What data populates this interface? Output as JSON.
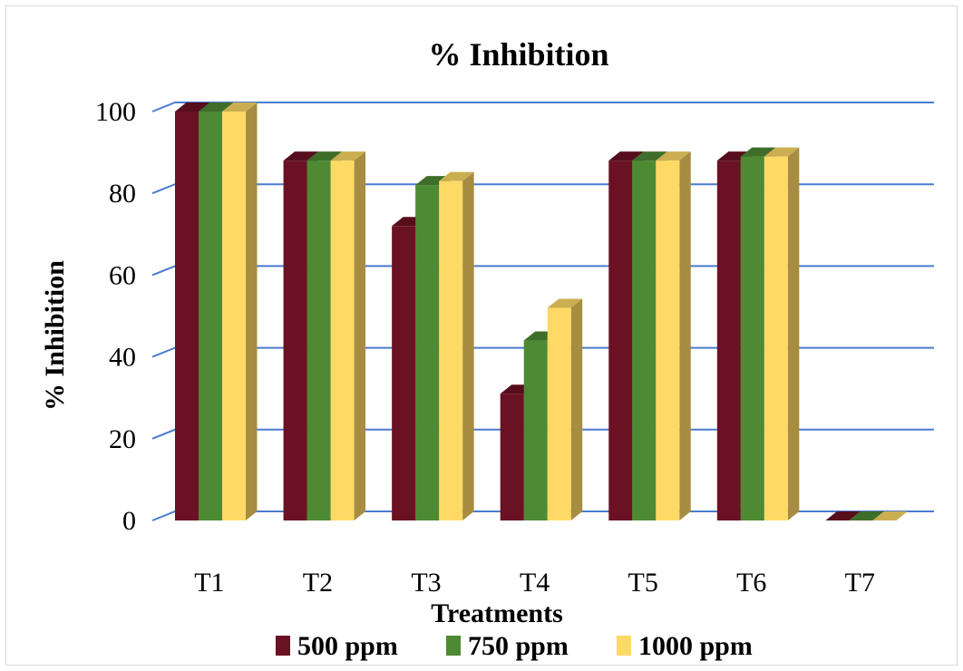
{
  "chart_data": {
    "type": "bar",
    "title": "% Inhibition",
    "xlabel": "Treatments",
    "ylabel": "% Inhibition",
    "categories": [
      "T1",
      "T2",
      "T3",
      "T4",
      "T5",
      "T6",
      "T7"
    ],
    "ylim": [
      0,
      100
    ],
    "yticks": [
      0,
      20,
      40,
      60,
      80,
      100
    ],
    "grid": true,
    "legend_position": "bottom",
    "series": [
      {
        "name": "500 ppm",
        "color": "#6b1124",
        "values": [
          100,
          88,
          72,
          31,
          88,
          88,
          0
        ]
      },
      {
        "name": "750 ppm",
        "color": "#4e8a34",
        "values": [
          100,
          88,
          82,
          44,
          88,
          89,
          0
        ]
      },
      {
        "name": "1000 ppm",
        "color": "#ffd966",
        "values": [
          100,
          88,
          83,
          52,
          88,
          89,
          0
        ]
      }
    ]
  }
}
